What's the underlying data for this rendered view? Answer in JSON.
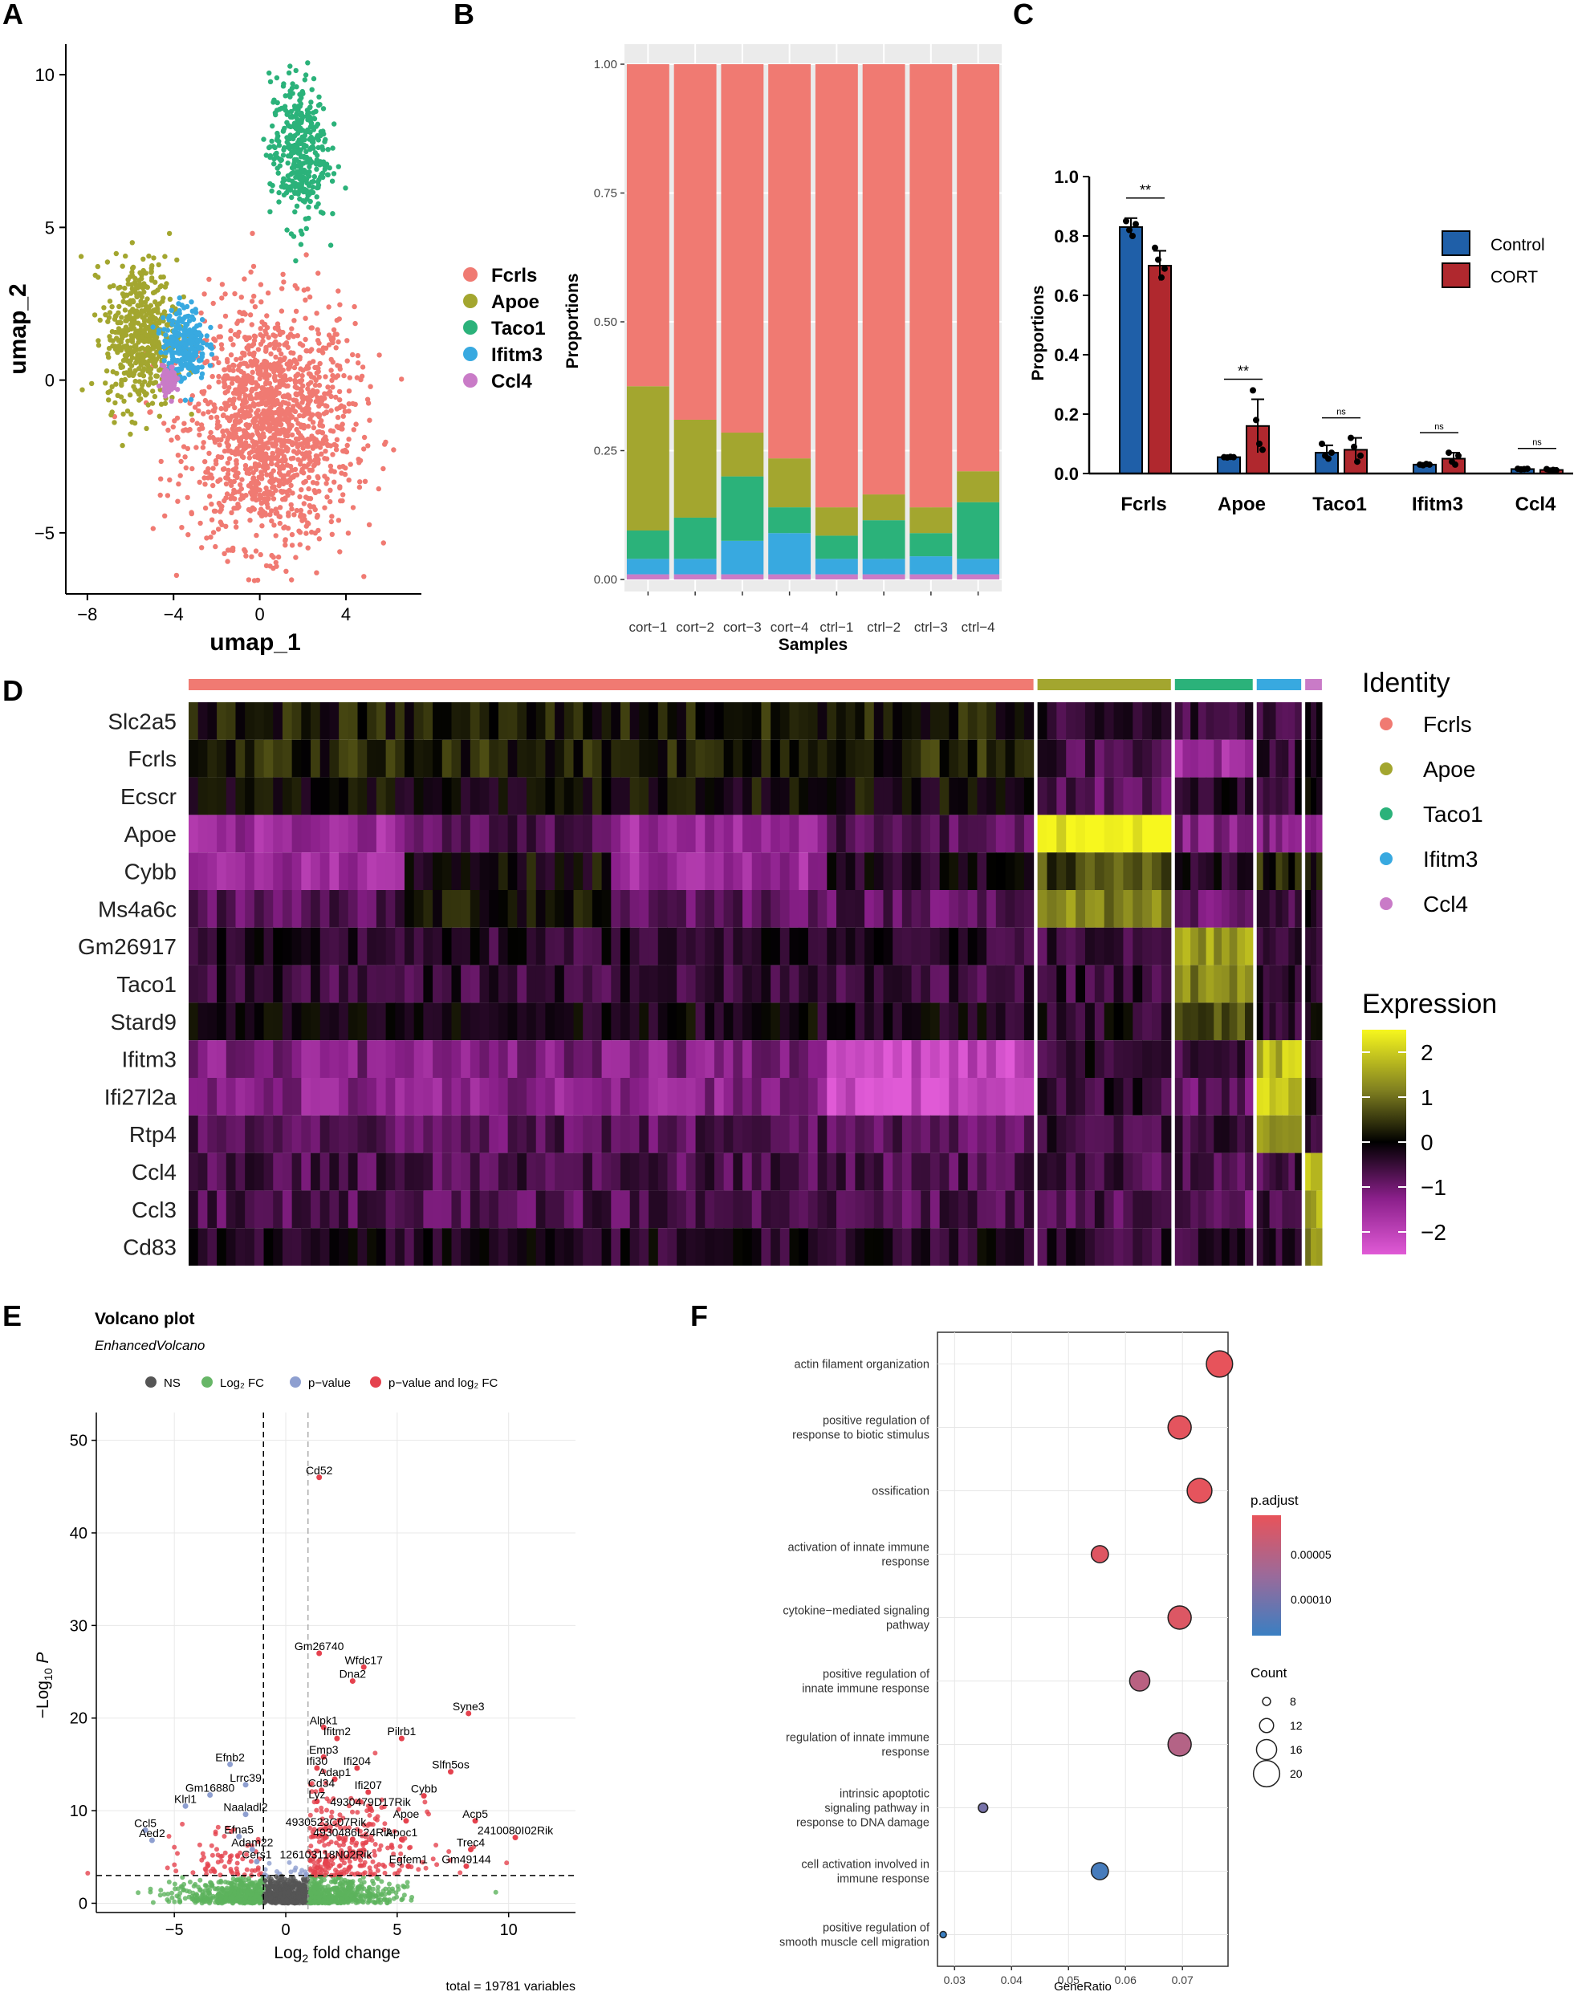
{
  "panel_letters": [
    "A",
    "B",
    "C",
    "D",
    "E",
    "F"
  ],
  "colors": {
    "Fcrls": "#F07A72",
    "Apoe": "#A3A62F",
    "Taco1": "#2BB27A",
    "Ifitm3": "#38A9E0",
    "Ccl4": "#C97BC7",
    "control": "#1F5FA8",
    "cort": "#B0282E"
  },
  "chart_data": [
    {
      "panel": "A",
      "type": "scatter",
      "title": "",
      "xlabel": "umap_1",
      "ylabel": "umap_2",
      "xlim": [
        -9,
        7.5
      ],
      "ylim": [
        -7,
        11
      ],
      "xticks": [
        -8,
        -4,
        0,
        4
      ],
      "yticks": [
        -5,
        0,
        5,
        10
      ],
      "legend": [
        "Fcrls",
        "Apoe",
        "Taco1",
        "Ifitm3",
        "Ccl4"
      ],
      "clusters": [
        {
          "name": "Fcrls",
          "center": [
            0.5,
            -1.5
          ],
          "spread": [
            3.5,
            3.5
          ]
        },
        {
          "name": "Apoe",
          "center": [
            -5.5,
            1.5
          ],
          "spread": [
            1.5,
            2.2
          ]
        },
        {
          "name": "Taco1",
          "center": [
            1.8,
            7.5
          ],
          "spread": [
            1.2,
            2.2
          ]
        },
        {
          "name": "Ifitm3",
          "center": [
            -3.5,
            1.2
          ],
          "spread": [
            0.9,
            1.1
          ]
        },
        {
          "name": "Ccl4",
          "center": [
            -4.2,
            0.0
          ],
          "spread": [
            0.3,
            0.4
          ]
        }
      ]
    },
    {
      "panel": "B",
      "type": "bar",
      "stacked": true,
      "xlabel": "Samples",
      "ylabel": "Proportions",
      "ylim": [
        0,
        1
      ],
      "yticks": [
        "0.00",
        "0.25",
        "0.50",
        "0.75",
        "1.00"
      ],
      "categories": [
        "cort−1",
        "cort−2",
        "cort−3",
        "cort−4",
        "ctrl−1",
        "ctrl−2",
        "ctrl−3",
        "ctrl−4"
      ],
      "series": [
        {
          "name": "Ccl4",
          "values": [
            0.01,
            0.01,
            0.01,
            0.01,
            0.01,
            0.01,
            0.01,
            0.01
          ]
        },
        {
          "name": "Ifitm3",
          "values": [
            0.03,
            0.03,
            0.065,
            0.08,
            0.03,
            0.03,
            0.035,
            0.03
          ]
        },
        {
          "name": "Taco1",
          "values": [
            0.055,
            0.08,
            0.125,
            0.05,
            0.045,
            0.075,
            0.045,
            0.11
          ]
        },
        {
          "name": "Apoe",
          "values": [
            0.28,
            0.19,
            0.085,
            0.095,
            0.055,
            0.05,
            0.05,
            0.06
          ]
        },
        {
          "name": "Fcrls",
          "values": [
            0.625,
            0.69,
            0.715,
            0.765,
            0.86,
            0.835,
            0.86,
            0.79
          ]
        }
      ]
    },
    {
      "panel": "C",
      "type": "bar",
      "xlabel": "",
      "ylabel": "Proportions",
      "ylim": [
        0,
        1.0
      ],
      "yticks": [
        "0.0",
        "0.2",
        "0.4",
        "0.6",
        "0.8",
        "1.0"
      ],
      "categories": [
        "Fcrls",
        "Apoe",
        "Taco1",
        "Ifitm3",
        "Ccl4"
      ],
      "series": [
        {
          "name": "Control",
          "values": [
            0.83,
            0.055,
            0.07,
            0.03,
            0.015
          ],
          "errors": [
            0.03,
            0.003,
            0.025,
            0.004,
            0.002
          ],
          "points": [
            [
              0.85,
              0.82,
              0.8,
              0.84
            ],
            [
              0.055,
              0.054,
              0.056,
              0.055
            ],
            [
              0.1,
              0.06,
              0.05,
              0.07
            ],
            [
              0.03,
              0.028,
              0.032,
              0.03
            ],
            [
              0.016,
              0.014,
              0.015,
              0.016
            ]
          ]
        },
        {
          "name": "CORT",
          "values": [
            0.7,
            0.16,
            0.08,
            0.05,
            0.012
          ],
          "errors": [
            0.05,
            0.09,
            0.04,
            0.02,
            0.004
          ],
          "points": [
            [
              0.76,
              0.72,
              0.66,
              0.69
            ],
            [
              0.28,
              0.18,
              0.1,
              0.08
            ],
            [
              0.12,
              0.09,
              0.04,
              0.06
            ],
            [
              0.07,
              0.04,
              0.03,
              0.06
            ],
            [
              0.015,
              0.01,
              0.012,
              0.011
            ]
          ]
        }
      ],
      "significance": [
        "**",
        "**",
        "ns",
        "ns",
        "ns"
      ],
      "legend": [
        "Control",
        "CORT"
      ]
    },
    {
      "panel": "D",
      "type": "heatmap",
      "genes": [
        "Slc2a5",
        "Fcrls",
        "Ecscr",
        "Apoe",
        "Cybb",
        "Ms4a6c",
        "Gm26917",
        "Taco1",
        "Stard9",
        "Ifitm3",
        "Ifi27l2a",
        "Rtp4",
        "Ccl4",
        "Ccl3",
        "Cd83"
      ],
      "identity_title": "Identity",
      "identities": [
        "Fcrls",
        "Apoe",
        "Taco1",
        "Ifitm3",
        "Ccl4"
      ],
      "group_fractions": [
        0.76,
        0.12,
        0.07,
        0.04,
        0.015
      ],
      "expression_title": "Expression",
      "expression_range": [
        -2.5,
        2.5
      ],
      "expression_ticks": [
        "2",
        "1",
        "0",
        "−1",
        "−2"
      ],
      "mean_expression": [
        [
          0.2,
          -0.5,
          -0.5,
          -0.5,
          0.0
        ],
        [
          0.3,
          -0.6,
          -1.5,
          -0.5,
          -0.3
        ],
        [
          0.0,
          -0.8,
          -0.3,
          -0.4,
          -0.2
        ],
        [
          -1.5,
          2.4,
          -1.2,
          -1.2,
          -1.3
        ],
        [
          -0.3,
          0.6,
          -0.3,
          0.3,
          0.2
        ],
        [
          -0.8,
          1.2,
          -0.9,
          -0.6,
          -0.3
        ],
        [
          -0.4,
          -0.6,
          1.5,
          -0.4,
          -0.2
        ],
        [
          -0.5,
          -0.5,
          1.2,
          -0.3,
          -0.4
        ],
        [
          -0.2,
          -0.3,
          0.8,
          -0.4,
          -0.2
        ],
        [
          -1.2,
          -0.4,
          -0.7,
          1.8,
          -0.3
        ],
        [
          -1.3,
          -0.5,
          -0.9,
          2.0,
          -0.4
        ],
        [
          -0.8,
          -0.6,
          -0.5,
          1.5,
          -0.4
        ],
        [
          -0.7,
          -0.7,
          -0.6,
          -0.6,
          2.0
        ],
        [
          -0.7,
          -0.7,
          -0.9,
          -0.6,
          1.5
        ],
        [
          -0.3,
          -0.4,
          -0.4,
          -0.4,
          1.2
        ]
      ]
    },
    {
      "panel": "E",
      "type": "scatter",
      "title": "Volcano plot",
      "subtitle": "EnhancedVolcano",
      "xlabel": "Log2 fold change",
      "ylabel": "−Log10 P",
      "xlim": [
        -8.5,
        13
      ],
      "ylim": [
        -1,
        53
      ],
      "xticks": [
        -5,
        0,
        5,
        10
      ],
      "yticks": [
        0,
        10,
        20,
        30,
        40,
        50
      ],
      "fc_cutoff": 1,
      "p_cutoff_log10": 3,
      "legend": [
        "NS",
        "Log2 FC",
        "p−value",
        "p−value and log2 FC"
      ],
      "caption": "total = 19781 variables",
      "labels": [
        {
          "gene": "Cd52",
          "x": 1.5,
          "y": 46
        },
        {
          "gene": "Gm26740",
          "x": 1.5,
          "y": 27
        },
        {
          "gene": "Wfdc17",
          "x": 3.5,
          "y": 25.5
        },
        {
          "gene": "Dna2",
          "x": 3.0,
          "y": 24
        },
        {
          "gene": "Syne3",
          "x": 8.2,
          "y": 20.5
        },
        {
          "gene": "Alpk1",
          "x": 1.7,
          "y": 19
        },
        {
          "gene": "Ifitm2",
          "x": 2.3,
          "y": 17.8
        },
        {
          "gene": "Pilrb1",
          "x": 5.2,
          "y": 17.8
        },
        {
          "gene": "Efnb2",
          "x": -2.5,
          "y": 15
        },
        {
          "gene": "Emp3",
          "x": 1.7,
          "y": 15.8
        },
        {
          "gene": "Ifi30",
          "x": 1.4,
          "y": 14.6
        },
        {
          "gene": "Ifi204",
          "x": 3.2,
          "y": 14.6
        },
        {
          "gene": "Slfn5os",
          "x": 7.4,
          "y": 14.2
        },
        {
          "gene": "Adap1",
          "x": 2.2,
          "y": 13.4
        },
        {
          "gene": "Lrrc39",
          "x": -1.8,
          "y": 12.8
        },
        {
          "gene": "Cd34",
          "x": 1.6,
          "y": 12.2
        },
        {
          "gene": "Ifi207",
          "x": 3.7,
          "y": 12.0
        },
        {
          "gene": "Gm16880",
          "x": -3.4,
          "y": 11.7
        },
        {
          "gene": "Cybb",
          "x": 6.2,
          "y": 11.6
        },
        {
          "gene": "Lyz",
          "x": 1.4,
          "y": 11.0
        },
        {
          "gene": "Klrl1",
          "x": -4.5,
          "y": 10.5
        },
        {
          "gene": "4930479D17Rik",
          "x": 3.8,
          "y": 10.2
        },
        {
          "gene": "Naaladl2",
          "x": -1.8,
          "y": 9.6
        },
        {
          "gene": "Apoe",
          "x": 5.4,
          "y": 8.9
        },
        {
          "gene": "Acp5",
          "x": 8.5,
          "y": 8.9
        },
        {
          "gene": "Ccl5",
          "x": -6.3,
          "y": 7.9
        },
        {
          "gene": "4930523C07Rik",
          "x": 1.8,
          "y": 8.0
        },
        {
          "gene": "Efna5",
          "x": -2.1,
          "y": 7.2
        },
        {
          "gene": "4930486L24Rik",
          "x": 3.0,
          "y": 6.9
        },
        {
          "gene": "Apoc1",
          "x": 5.2,
          "y": 6.9
        },
        {
          "gene": "2410080I02Rik",
          "x": 10.3,
          "y": 7.1
        },
        {
          "gene": "Aed2",
          "x": -6.0,
          "y": 6.8
        },
        {
          "gene": "Adam22",
          "x": -1.5,
          "y": 5.8
        },
        {
          "gene": "Trec4",
          "x": 8.3,
          "y": 5.8
        },
        {
          "gene": "Cers1",
          "x": -1.3,
          "y": 4.5
        },
        {
          "gene": "126103118N02Rik",
          "x": 1.8,
          "y": 4.5
        },
        {
          "gene": "Egfem1",
          "x": 5.5,
          "y": 4.0
        },
        {
          "gene": "Gm49144",
          "x": 8.1,
          "y": 4.0
        }
      ]
    },
    {
      "panel": "F",
      "type": "scatter",
      "xlabel": "GeneRatio",
      "xlim": [
        0.027,
        0.078
      ],
      "xticks": [
        "0.03",
        "0.04",
        "0.05",
        "0.06",
        "0.07"
      ],
      "terms": [
        {
          "label": [
            "actin filament organization"
          ],
          "ratio": 0.0765,
          "count": 20,
          "padj": 2e-06
        },
        {
          "label": [
            "positive regulation of",
            "response to biotic stimulus"
          ],
          "ratio": 0.0695,
          "count": 18,
          "padj": 5e-06
        },
        {
          "label": [
            "ossification"
          ],
          "ratio": 0.073,
          "count": 19,
          "padj": 4e-06
        },
        {
          "label": [
            "activation of innate immune",
            "response"
          ],
          "ratio": 0.0555,
          "count": 14,
          "padj": 1e-05
        },
        {
          "label": [
            "cytokine−mediated signaling",
            "pathway"
          ],
          "ratio": 0.0695,
          "count": 18,
          "padj": 1.2e-05
        },
        {
          "label": [
            "positive regulation of",
            "innate immune response"
          ],
          "ratio": 0.0625,
          "count": 16,
          "padj": 4.5e-05
        },
        {
          "label": [
            "regulation of innate immune",
            "response"
          ],
          "ratio": 0.0695,
          "count": 18,
          "padj": 5e-05
        },
        {
          "label": [
            "intrinsic apoptotic",
            "signaling pathway in",
            "response to DNA damage"
          ],
          "ratio": 0.035,
          "count": 9,
          "padj": 0.0001
        },
        {
          "label": [
            "cell activation involved in",
            "immune response"
          ],
          "ratio": 0.0555,
          "count": 14,
          "padj": 0.000135
        },
        {
          "label": [
            "positive regulation of",
            "smooth muscle cell migration"
          ],
          "ratio": 0.028,
          "count": 7,
          "padj": 0.000145
        }
      ],
      "color_legend_title": "p.adjust",
      "color_ticks": [
        "0.00005",
        "0.00010"
      ],
      "color_range": [
        1e-06,
        0.000145
      ],
      "size_legend_title": "Count",
      "size_legend": [
        8,
        12,
        16,
        20
      ]
    }
  ]
}
